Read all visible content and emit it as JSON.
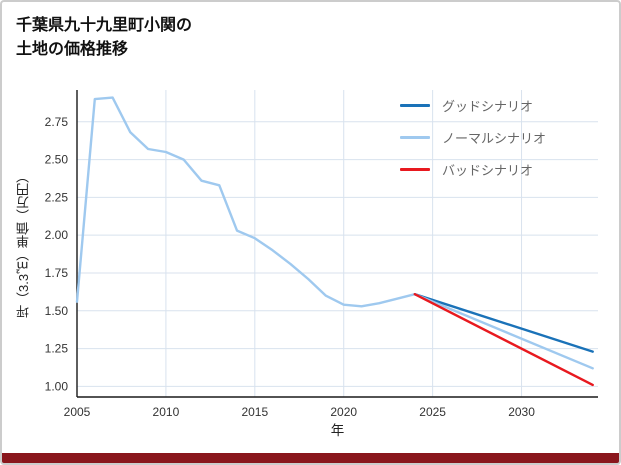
{
  "header": {
    "title_line1": "千葉県九十九里町小関の",
    "title_line2": "土地の価格推移"
  },
  "page": {
    "footer_color": "#8a161d"
  },
  "chart_data": {
    "type": "line",
    "title": "千葉県九十九里町小関の土地の価格推移",
    "xlabel": "年",
    "ylabel": "坪（3.3㎡）単価（万円）",
    "xlim": [
      2005,
      2034.3
    ],
    "ylim": [
      0.93,
      2.96
    ],
    "xticks": [
      2005,
      2010,
      2015,
      2020,
      2025,
      2030
    ],
    "yticks": [
      1.0,
      1.25,
      1.5,
      1.75,
      2.0,
      2.25,
      2.5,
      2.75
    ],
    "grid": true,
    "legend_position": "top-right",
    "series": [
      {
        "id": "history",
        "label": "",
        "color": "#9fc9ef",
        "x": [
          2005,
          2006,
          2007,
          2008,
          2009,
          2010,
          2011,
          2012,
          2013,
          2014,
          2015,
          2016,
          2017,
          2018,
          2019,
          2020,
          2021,
          2022,
          2023,
          2024
        ],
        "y": [
          1.56,
          2.9,
          2.91,
          2.68,
          2.57,
          2.55,
          2.5,
          2.36,
          2.33,
          2.03,
          1.98,
          1.9,
          1.81,
          1.71,
          1.6,
          1.54,
          1.53,
          1.55,
          1.58,
          1.61
        ]
      },
      {
        "id": "good",
        "label": "グッドシナリオ",
        "color": "#1a72b8",
        "x": [
          2024,
          2034
        ],
        "y": [
          1.61,
          1.23
        ]
      },
      {
        "id": "normal",
        "label": "ノーマルシナリオ",
        "color": "#9fc9ef",
        "x": [
          2024,
          2034
        ],
        "y": [
          1.61,
          1.12
        ]
      },
      {
        "id": "bad",
        "label": "バッドシナリオ",
        "color": "#e8191f",
        "x": [
          2024,
          2034
        ],
        "y": [
          1.61,
          1.01
        ]
      }
    ],
    "colors": {
      "grid": "#d8e2ee",
      "axis": "#1a1a1a"
    }
  }
}
